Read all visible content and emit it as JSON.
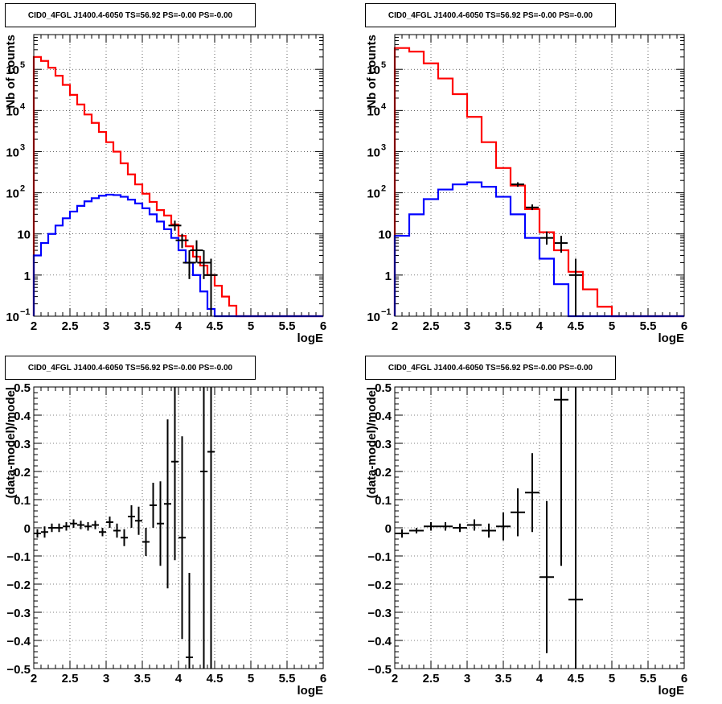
{
  "chart_data": [
    {
      "type": "line",
      "title": "CID0_4FGL J1400.4-6050 TS=56.92 PS=-0.00 PS=-0.00",
      "xlabel": "logE",
      "ylabel": "Nb of counts",
      "xlim": [
        2,
        6
      ],
      "ylim": [
        0.1,
        700000
      ],
      "log_y": true,
      "grid": true,
      "xticks": [
        "2",
        "2.5",
        "3",
        "3.5",
        "4",
        "4.5",
        "5",
        "5.5",
        "6"
      ],
      "yticks": [
        {
          "v": 0.1,
          "label": "10",
          "sup": "−1"
        },
        {
          "v": 1,
          "label": "1",
          "sup": ""
        },
        {
          "v": 10,
          "label": "10",
          "sup": ""
        },
        {
          "v": 100,
          "label": "10",
          "sup": "2"
        },
        {
          "v": 1000,
          "label": "10",
          "sup": "3"
        },
        {
          "v": 10000,
          "label": "10",
          "sup": "4"
        },
        {
          "v": 100000,
          "label": "10",
          "sup": "5"
        }
      ],
      "bin_edges": [
        2.0,
        2.1,
        2.2,
        2.3,
        2.4,
        2.5,
        2.6,
        2.7,
        2.8,
        2.9,
        3.0,
        3.1,
        3.2,
        3.3,
        3.4,
        3.5,
        3.6,
        3.7,
        3.8,
        3.9,
        4.0,
        4.1,
        4.2,
        4.3,
        4.4,
        4.5,
        4.6,
        4.7,
        4.8,
        4.9,
        5.0,
        5.1,
        5.2,
        5.3,
        5.4,
        5.5,
        5.6,
        5.7,
        5.8,
        5.9,
        6.0
      ],
      "series": [
        {
          "color": "#ff0000",
          "values": [
            200000,
            160000,
            110000,
            70000,
            42000,
            24000,
            14000,
            8000,
            5000,
            3000,
            1700,
            1000,
            520,
            280,
            160,
            95,
            60,
            38,
            28,
            17,
            9,
            5,
            2.8,
            1.7,
            1.0,
            0.55,
            0.3,
            0.18,
            0.1,
            0.1,
            0.1,
            0.1,
            0.1,
            0.1,
            0.1,
            0.1,
            0.1,
            0.1,
            0.1,
            0.1
          ]
        },
        {
          "color": "#0000ff",
          "values": [
            3,
            6,
            10,
            16,
            24,
            35,
            48,
            62,
            74,
            85,
            90,
            88,
            80,
            68,
            55,
            42,
            30,
            20,
            13,
            8,
            4,
            2,
            1,
            0.4,
            0.15,
            0.1,
            0.1,
            0.1,
            0.1,
            0.1,
            0.1,
            0.1,
            0.1,
            0.1,
            0.1,
            0.1,
            0.1,
            0.1,
            0.1,
            0.1
          ]
        }
      ],
      "data_points": [
        {
          "x": 3.95,
          "y": 16,
          "ey_lo": 12,
          "ey_hi": 21
        },
        {
          "x": 4.05,
          "y": 7,
          "ey_lo": 4.5,
          "ey_hi": 10
        },
        {
          "x": 4.15,
          "y": 2,
          "ey_lo": 0.8,
          "ey_hi": 4
        },
        {
          "x": 4.25,
          "y": 4,
          "ey_lo": 2,
          "ey_hi": 7
        },
        {
          "x": 4.35,
          "y": 2,
          "ey_lo": 0.8,
          "ey_hi": 4
        },
        {
          "x": 4.45,
          "y": 1,
          "ey_lo": 0.1,
          "ey_hi": 2.5
        }
      ]
    },
    {
      "type": "line",
      "title": "CID0_4FGL J1400.4-6050 TS=56.92 PS=-0.00 PS=-0.00",
      "xlabel": "logE",
      "ylabel": "Nb of counts",
      "xlim": [
        2,
        6
      ],
      "ylim": [
        0.1,
        700000
      ],
      "log_y": true,
      "grid": true,
      "xticks": [
        "2",
        "2.5",
        "3",
        "3.5",
        "4",
        "4.5",
        "5",
        "5.5",
        "6"
      ],
      "yticks": [
        {
          "v": 0.1,
          "label": "10",
          "sup": "−1"
        },
        {
          "v": 1,
          "label": "1",
          "sup": ""
        },
        {
          "v": 10,
          "label": "10",
          "sup": ""
        },
        {
          "v": 100,
          "label": "10",
          "sup": "2"
        },
        {
          "v": 1000,
          "label": "10",
          "sup": "3"
        },
        {
          "v": 10000,
          "label": "10",
          "sup": "4"
        },
        {
          "v": 100000,
          "label": "10",
          "sup": "5"
        }
      ],
      "bin_edges": [
        2.0,
        2.2,
        2.4,
        2.6,
        2.8,
        3.0,
        3.2,
        3.4,
        3.6,
        3.8,
        4.0,
        4.2,
        4.4,
        4.6,
        4.8,
        5.0,
        5.2,
        5.4,
        5.6,
        5.8,
        6.0
      ],
      "series": [
        {
          "color": "#ff0000",
          "values": [
            330000,
            270000,
            140000,
            60000,
            25000,
            7000,
            1700,
            400,
            150,
            40,
            11,
            4,
            1.2,
            0.45,
            0.17,
            0.1,
            0.1,
            0.1,
            0.1,
            0.1
          ]
        },
        {
          "color": "#0000ff",
          "values": [
            9,
            30,
            70,
            120,
            160,
            180,
            140,
            80,
            30,
            8,
            2.5,
            0.6,
            0.1,
            0.1,
            0.1,
            0.1,
            0.1,
            0.1,
            0.1,
            0.1
          ]
        }
      ],
      "data_points": [
        {
          "x": 3.7,
          "y": 160,
          "ey_lo": 140,
          "ey_hi": 180
        },
        {
          "x": 3.9,
          "y": 44,
          "ey_lo": 38,
          "ey_hi": 52
        },
        {
          "x": 4.1,
          "y": 8,
          "ey_lo": 5.5,
          "ey_hi": 11.5
        },
        {
          "x": 4.3,
          "y": 6,
          "ey_lo": 3.5,
          "ey_hi": 9
        },
        {
          "x": 4.5,
          "y": 1,
          "ey_lo": 0.1,
          "ey_hi": 2.5
        }
      ]
    },
    {
      "type": "scatter",
      "title": "CID0_4FGL J1400.4-6050 TS=56.92 PS=-0.00 PS=-0.00",
      "xlabel": "logE",
      "ylabel": "(data-model)/model",
      "xlim": [
        2,
        6
      ],
      "ylim": [
        -0.5,
        0.5
      ],
      "log_y": false,
      "grid": true,
      "xticks": [
        "2",
        "2.5",
        "3",
        "3.5",
        "4",
        "4.5",
        "5",
        "5.5",
        "6"
      ],
      "yticks": [
        {
          "v": -0.5,
          "label": "−0.5",
          "sup": ""
        },
        {
          "v": -0.4,
          "label": "−0.4",
          "sup": ""
        },
        {
          "v": -0.3,
          "label": "−0.3",
          "sup": ""
        },
        {
          "v": -0.2,
          "label": "−0.2",
          "sup": ""
        },
        {
          "v": -0.1,
          "label": "−0.1",
          "sup": ""
        },
        {
          "v": 0,
          "label": "0",
          "sup": ""
        },
        {
          "v": 0.1,
          "label": "0.1",
          "sup": ""
        },
        {
          "v": 0.2,
          "label": "0.2",
          "sup": ""
        },
        {
          "v": 0.3,
          "label": "0.3",
          "sup": ""
        },
        {
          "v": 0.4,
          "label": "0.4",
          "sup": ""
        },
        {
          "v": 0.5,
          "label": "0.5",
          "sup": ""
        }
      ],
      "xerr": 0.05,
      "points": [
        {
          "x": 2.05,
          "y": -0.02,
          "ey": 0.015
        },
        {
          "x": 2.15,
          "y": -0.015,
          "ey": 0.02
        },
        {
          "x": 2.25,
          "y": 0.0,
          "ey": 0.015
        },
        {
          "x": 2.35,
          "y": 0.0,
          "ey": 0.015
        },
        {
          "x": 2.45,
          "y": 0.005,
          "ey": 0.015
        },
        {
          "x": 2.55,
          "y": 0.015,
          "ey": 0.015
        },
        {
          "x": 2.65,
          "y": 0.01,
          "ey": 0.015
        },
        {
          "x": 2.75,
          "y": 0.005,
          "ey": 0.015
        },
        {
          "x": 2.85,
          "y": 0.01,
          "ey": 0.015
        },
        {
          "x": 2.95,
          "y": -0.015,
          "ey": 0.015
        },
        {
          "x": 3.05,
          "y": 0.02,
          "ey": 0.02
        },
        {
          "x": 3.15,
          "y": -0.01,
          "ey": 0.025
        },
        {
          "x": 3.25,
          "y": -0.035,
          "ey": 0.03
        },
        {
          "x": 3.35,
          "y": 0.04,
          "ey": 0.04
        },
        {
          "x": 3.45,
          "y": 0.025,
          "ey": 0.05
        },
        {
          "x": 3.55,
          "y": -0.05,
          "ey": 0.05
        },
        {
          "x": 3.65,
          "y": 0.08,
          "ey": 0.08
        },
        {
          "x": 3.75,
          "y": 0.015,
          "ey": 0.15
        },
        {
          "x": 3.85,
          "y": 0.085,
          "ey": 0.3
        },
        {
          "x": 3.95,
          "y": 0.235,
          "ey": 0.35
        },
        {
          "x": 4.05,
          "y": -0.035,
          "ey": 0.36
        },
        {
          "x": 4.15,
          "y": -0.46,
          "ey": 0.3
        },
        {
          "x": 4.35,
          "y": 0.2,
          "ey": 0.9
        },
        {
          "x": 4.45,
          "y": 0.27,
          "ey": 0.9
        }
      ]
    },
    {
      "type": "scatter",
      "title": "CID0_4FGL J1400.4-6050 TS=56.92 PS=-0.00 PS=-0.00",
      "xlabel": "logE",
      "ylabel": "(data-model)/model",
      "xlim": [
        2,
        6
      ],
      "ylim": [
        -0.5,
        0.5
      ],
      "log_y": false,
      "grid": true,
      "xticks": [
        "2",
        "2.5",
        "3",
        "3.5",
        "4",
        "4.5",
        "5",
        "5.5",
        "6"
      ],
      "yticks": [
        {
          "v": -0.5,
          "label": "−0.5",
          "sup": ""
        },
        {
          "v": -0.4,
          "label": "−0.4",
          "sup": ""
        },
        {
          "v": -0.3,
          "label": "−0.3",
          "sup": ""
        },
        {
          "v": -0.2,
          "label": "−0.2",
          "sup": ""
        },
        {
          "v": -0.1,
          "label": "−0.1",
          "sup": ""
        },
        {
          "v": 0,
          "label": "0",
          "sup": ""
        },
        {
          "v": 0.1,
          "label": "0.1",
          "sup": ""
        },
        {
          "v": 0.2,
          "label": "0.2",
          "sup": ""
        },
        {
          "v": 0.3,
          "label": "0.3",
          "sup": ""
        },
        {
          "v": 0.4,
          "label": "0.4",
          "sup": ""
        },
        {
          "v": 0.5,
          "label": "0.5",
          "sup": ""
        }
      ],
      "xerr": 0.1,
      "points": [
        {
          "x": 2.1,
          "y": -0.02,
          "ey": 0.015
        },
        {
          "x": 2.3,
          "y": -0.01,
          "ey": 0.01
        },
        {
          "x": 2.5,
          "y": 0.005,
          "ey": 0.015
        },
        {
          "x": 2.7,
          "y": 0.005,
          "ey": 0.015
        },
        {
          "x": 2.9,
          "y": 0.0,
          "ey": 0.015
        },
        {
          "x": 3.1,
          "y": 0.01,
          "ey": 0.02
        },
        {
          "x": 3.3,
          "y": -0.01,
          "ey": 0.025
        },
        {
          "x": 3.5,
          "y": 0.005,
          "ey": 0.05
        },
        {
          "x": 3.7,
          "y": 0.055,
          "ey": 0.085
        },
        {
          "x": 3.9,
          "y": 0.125,
          "ey": 0.14
        },
        {
          "x": 4.1,
          "y": -0.175,
          "ey": 0.27
        },
        {
          "x": 4.3,
          "y": 0.455,
          "ey": 0.59
        },
        {
          "x": 4.5,
          "y": -0.255,
          "ey": 0.8
        }
      ]
    }
  ]
}
